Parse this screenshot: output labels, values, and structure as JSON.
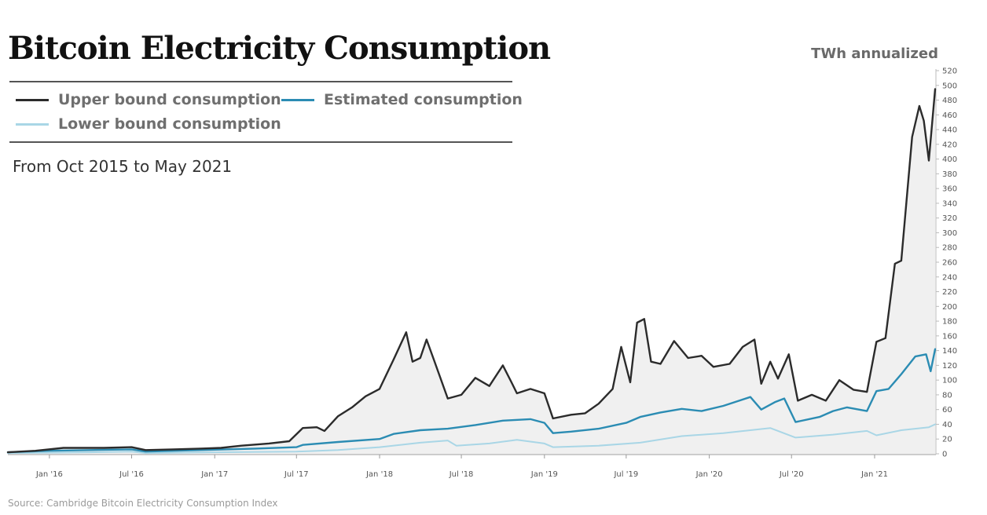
{
  "title": "Bitcoin Electricity Consumption",
  "subtitle": "From Oct 2015 to May 2021",
  "unit_label": "TWh annualized",
  "source": "Source: Cambridge Bitcoin Electricity Consumption Index",
  "legend": {
    "upper": "Upper bound consumption",
    "estimated": "Estimated consumption",
    "lower": "Lower bound consumption"
  },
  "colors": {
    "upper": "#2b2b2b",
    "estimated": "#2b8cb3",
    "lower": "#a9d6e6",
    "fill": "#f0f0f0"
  },
  "chart_data": {
    "type": "line",
    "title": "Bitcoin Electricity Consumption",
    "ylabel": "TWh annualized",
    "ylim": [
      0,
      520
    ],
    "ytick_step": 20,
    "xlim": [
      "2015-10-01",
      "2021-05-15"
    ],
    "x_ticks": [
      {
        "date": "2016-01-01",
        "label": "Jan '16"
      },
      {
        "date": "2016-07-01",
        "label": "Jul '16"
      },
      {
        "date": "2017-01-01",
        "label": "Jan '17"
      },
      {
        "date": "2017-07-01",
        "label": "Jul '17"
      },
      {
        "date": "2018-01-01",
        "label": "Jan '18"
      },
      {
        "date": "2018-07-01",
        "label": "Jul '18"
      },
      {
        "date": "2019-01-01",
        "label": "Jan '19"
      },
      {
        "date": "2019-07-01",
        "label": "Jul '19"
      },
      {
        "date": "2020-01-01",
        "label": "Jan '20"
      },
      {
        "date": "2020-07-01",
        "label": "Jul '20"
      },
      {
        "date": "2021-01-01",
        "label": "Jan '21"
      }
    ],
    "series": [
      {
        "name": "Upper bound consumption",
        "key": "upper",
        "points": [
          [
            "2015-10-01",
            2
          ],
          [
            "2015-12-01",
            4
          ],
          [
            "2016-02-01",
            8
          ],
          [
            "2016-05-01",
            8
          ],
          [
            "2016-07-01",
            9
          ],
          [
            "2016-08-01",
            5
          ],
          [
            "2016-10-01",
            6
          ],
          [
            "2016-12-01",
            7
          ],
          [
            "2017-01-15",
            8
          ],
          [
            "2017-03-01",
            11
          ],
          [
            "2017-05-01",
            14
          ],
          [
            "2017-06-15",
            17
          ],
          [
            "2017-07-15",
            35
          ],
          [
            "2017-08-15",
            36
          ],
          [
            "2017-09-01",
            31
          ],
          [
            "2017-10-01",
            51
          ],
          [
            "2017-11-01",
            63
          ],
          [
            "2017-12-01",
            78
          ],
          [
            "2018-01-01",
            88
          ],
          [
            "2018-02-01",
            128
          ],
          [
            "2018-03-01",
            165
          ],
          [
            "2018-03-15",
            125
          ],
          [
            "2018-04-01",
            130
          ],
          [
            "2018-04-15",
            155
          ],
          [
            "2018-05-01",
            128
          ],
          [
            "2018-06-01",
            75
          ],
          [
            "2018-07-01",
            80
          ],
          [
            "2018-08-01",
            103
          ],
          [
            "2018-09-01",
            92
          ],
          [
            "2018-10-01",
            120
          ],
          [
            "2018-10-20",
            97
          ],
          [
            "2018-11-01",
            82
          ],
          [
            "2018-12-01",
            88
          ],
          [
            "2019-01-01",
            82
          ],
          [
            "2019-01-20",
            48
          ],
          [
            "2019-03-01",
            53
          ],
          [
            "2019-04-01",
            55
          ],
          [
            "2019-05-01",
            68
          ],
          [
            "2019-06-01",
            88
          ],
          [
            "2019-06-20",
            145
          ],
          [
            "2019-07-10",
            97
          ],
          [
            "2019-07-25",
            178
          ],
          [
            "2019-08-10",
            183
          ],
          [
            "2019-08-25",
            125
          ],
          [
            "2019-09-15",
            122
          ],
          [
            "2019-10-15",
            153
          ],
          [
            "2019-11-15",
            130
          ],
          [
            "2019-12-15",
            133
          ],
          [
            "2020-01-10",
            118
          ],
          [
            "2020-02-15",
            122
          ],
          [
            "2020-03-15",
            145
          ],
          [
            "2020-04-10",
            155
          ],
          [
            "2020-04-25",
            95
          ],
          [
            "2020-05-15",
            125
          ],
          [
            "2020-06-01",
            102
          ],
          [
            "2020-06-25",
            135
          ],
          [
            "2020-07-15",
            72
          ],
          [
            "2020-08-15",
            80
          ],
          [
            "2020-09-15",
            72
          ],
          [
            "2020-10-15",
            100
          ],
          [
            "2020-11-15",
            87
          ],
          [
            "2020-12-15",
            84
          ],
          [
            "2021-01-05",
            152
          ],
          [
            "2021-01-25",
            157
          ],
          [
            "2021-02-15",
            258
          ],
          [
            "2021-03-01",
            262
          ],
          [
            "2021-03-25",
            430
          ],
          [
            "2021-04-10",
            472
          ],
          [
            "2021-04-20",
            452
          ],
          [
            "2021-05-01",
            398
          ],
          [
            "2021-05-15",
            495
          ]
        ]
      },
      {
        "name": "Estimated consumption",
        "key": "estimated",
        "points": [
          [
            "2015-10-01",
            2
          ],
          [
            "2016-01-01",
            4
          ],
          [
            "2016-04-01",
            5
          ],
          [
            "2016-07-01",
            6
          ],
          [
            "2016-08-01",
            3
          ],
          [
            "2016-12-01",
            5
          ],
          [
            "2017-04-01",
            7
          ],
          [
            "2017-07-01",
            9
          ],
          [
            "2017-07-15",
            12
          ],
          [
            "2017-10-01",
            16
          ],
          [
            "2018-01-01",
            20
          ],
          [
            "2018-02-01",
            27
          ],
          [
            "2018-04-01",
            32
          ],
          [
            "2018-06-01",
            34
          ],
          [
            "2018-08-01",
            39
          ],
          [
            "2018-10-01",
            45
          ],
          [
            "2018-12-01",
            47
          ],
          [
            "2019-01-01",
            42
          ],
          [
            "2019-01-20",
            28
          ],
          [
            "2019-03-01",
            30
          ],
          [
            "2019-05-01",
            34
          ],
          [
            "2019-07-01",
            42
          ],
          [
            "2019-08-01",
            50
          ],
          [
            "2019-09-15",
            56
          ],
          [
            "2019-11-01",
            61
          ],
          [
            "2019-12-15",
            58
          ],
          [
            "2020-02-01",
            65
          ],
          [
            "2020-04-01",
            77
          ],
          [
            "2020-04-25",
            60
          ],
          [
            "2020-05-25",
            70
          ],
          [
            "2020-06-15",
            75
          ],
          [
            "2020-07-10",
            43
          ],
          [
            "2020-09-01",
            50
          ],
          [
            "2020-10-01",
            58
          ],
          [
            "2020-11-01",
            63
          ],
          [
            "2020-12-15",
            58
          ],
          [
            "2021-01-05",
            85
          ],
          [
            "2021-02-01",
            88
          ],
          [
            "2021-03-01",
            108
          ],
          [
            "2021-04-01",
            132
          ],
          [
            "2021-04-25",
            135
          ],
          [
            "2021-05-05",
            112
          ],
          [
            "2021-05-15",
            142
          ]
        ]
      },
      {
        "name": "Lower bound consumption",
        "key": "lower",
        "points": [
          [
            "2015-10-01",
            1
          ],
          [
            "2016-04-01",
            2
          ],
          [
            "2016-07-01",
            3
          ],
          [
            "2016-08-01",
            1
          ],
          [
            "2017-01-01",
            2
          ],
          [
            "2017-07-01",
            3
          ],
          [
            "2017-10-01",
            5
          ],
          [
            "2018-01-01",
            9
          ],
          [
            "2018-04-01",
            15
          ],
          [
            "2018-06-01",
            18
          ],
          [
            "2018-06-20",
            11
          ],
          [
            "2018-09-01",
            14
          ],
          [
            "2018-11-01",
            19
          ],
          [
            "2019-01-01",
            14
          ],
          [
            "2019-01-20",
            9
          ],
          [
            "2019-05-01",
            11
          ],
          [
            "2019-08-01",
            15
          ],
          [
            "2019-11-01",
            24
          ],
          [
            "2020-02-01",
            28
          ],
          [
            "2020-04-01",
            32
          ],
          [
            "2020-05-15",
            35
          ],
          [
            "2020-07-10",
            22
          ],
          [
            "2020-10-01",
            26
          ],
          [
            "2020-12-15",
            31
          ],
          [
            "2021-01-05",
            25
          ],
          [
            "2021-03-01",
            32
          ],
          [
            "2021-05-01",
            36
          ],
          [
            "2021-05-15",
            40
          ]
        ]
      }
    ]
  }
}
